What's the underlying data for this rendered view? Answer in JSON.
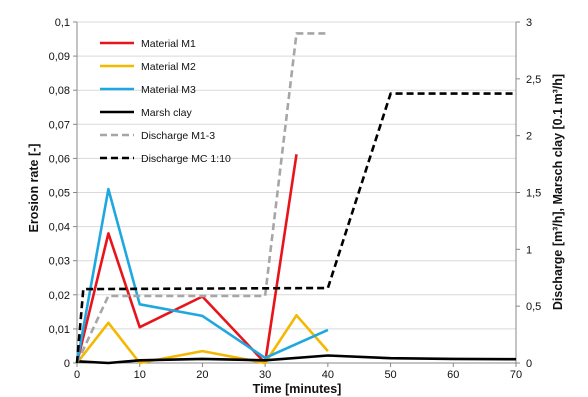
{
  "chart_data": {
    "type": "line",
    "xlabel": "Time [minutes]",
    "ylabel_left": "Erosion rate [-]",
    "ylabel_right": "Discharge [m³/h], Marsch clay [0.1 m³/h]",
    "xlim": [
      0,
      70
    ],
    "ylim_left": [
      0,
      0.1
    ],
    "ylim_right": [
      0,
      3
    ],
    "x_ticks": [
      "0",
      "10",
      "20",
      "30",
      "40",
      "50",
      "60",
      "70"
    ],
    "y_ticks_left": [
      "0",
      "0,01",
      "0,02",
      "0,03",
      "0,04",
      "0,05",
      "0,06",
      "0,07",
      "0,08",
      "0,09",
      "0,1"
    ],
    "y_ticks_right": [
      "0",
      "0,5",
      "1",
      "1,5",
      "2",
      "2,5",
      "3"
    ],
    "grid": "horizontal",
    "legend_position": "top-left",
    "series": [
      {
        "name": "Material M1",
        "axis": "left",
        "color": "#e8141b",
        "style": "solid",
        "x": [
          0,
          5,
          10,
          20,
          30,
          35
        ],
        "y": [
          0,
          0.038,
          0.0105,
          0.0195,
          0,
          0.0612
        ]
      },
      {
        "name": "Material M2",
        "axis": "left",
        "color": "#f5b800",
        "style": "solid",
        "x": [
          0,
          5,
          10,
          20,
          30,
          35,
          40
        ],
        "y": [
          0,
          0.0118,
          0,
          0.0035,
          0,
          0.014,
          0.0035
        ]
      },
      {
        "name": "Material M3",
        "axis": "left",
        "color": "#1fa8e0",
        "style": "solid",
        "x": [
          0,
          5,
          10,
          20,
          30,
          40
        ],
        "y": [
          0,
          0.051,
          0.0172,
          0.0138,
          0.0015,
          0.0097
        ]
      },
      {
        "name": "Marsh clay",
        "axis": "left",
        "color": "#000000",
        "style": "solid",
        "x": [
          0,
          5,
          10,
          20,
          30,
          40,
          50,
          60,
          70
        ],
        "y": [
          0.0005,
          0,
          0.0008,
          0.0012,
          0.0008,
          0.0022,
          0.0014,
          0.0012,
          0.0011
        ]
      },
      {
        "name": "Discharge M1-3",
        "axis": "right",
        "color": "#a6a6a6",
        "style": "dashed",
        "x": [
          0,
          5,
          30,
          35,
          40
        ],
        "y": [
          0,
          0.59,
          0.59,
          2.9,
          2.9
        ]
      },
      {
        "name": "Discharge MC 1:10",
        "axis": "right",
        "color": "#000000",
        "style": "dashed",
        "x": [
          0,
          1,
          40,
          50,
          70
        ],
        "y": [
          0,
          0.65,
          0.66,
          2.37,
          2.37
        ]
      }
    ]
  }
}
